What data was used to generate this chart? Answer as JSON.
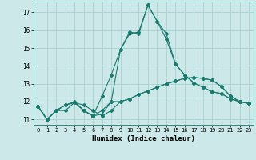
{
  "xlabel": "Humidex (Indice chaleur)",
  "bg_color": "#cce8e8",
  "line_color": "#1a7a6e",
  "grid_color": "#aacfcf",
  "xlim": [
    -0.5,
    23.5
  ],
  "ylim": [
    10.7,
    17.6
  ],
  "yticks": [
    11,
    12,
    13,
    14,
    15,
    16,
    17
  ],
  "xticks": [
    0,
    1,
    2,
    3,
    4,
    5,
    6,
    7,
    8,
    9,
    10,
    11,
    12,
    13,
    14,
    15,
    16,
    17,
    18,
    19,
    20,
    21,
    22,
    23
  ],
  "xtick_labels": [
    "0",
    "1",
    "2",
    "3",
    "4",
    "5",
    "6",
    "7",
    "8",
    "9",
    "10",
    "11",
    "12",
    "13",
    "14",
    "15",
    "16",
    "17",
    "18",
    "19",
    "20",
    "21",
    "22",
    "23"
  ],
  "series": [
    [
      11.75,
      11.0,
      11.5,
      11.5,
      11.95,
      11.8,
      11.5,
      11.2,
      11.5,
      12.0,
      12.15,
      12.4,
      12.6,
      12.8,
      13.0,
      13.15,
      13.3,
      13.35,
      13.3,
      13.2,
      12.85,
      12.3,
      12.0,
      11.9
    ],
    [
      11.75,
      11.0,
      11.5,
      11.8,
      11.95,
      11.5,
      11.2,
      12.3,
      13.5,
      14.9,
      15.8,
      15.9,
      17.4,
      16.5,
      15.5,
      14.1,
      13.5,
      13.05,
      12.8,
      12.55,
      12.45,
      12.15,
      12.0,
      11.9
    ],
    [
      11.75,
      11.0,
      11.5,
      11.8,
      11.95,
      11.5,
      11.2,
      11.5,
      12.0,
      14.9,
      15.9,
      15.8,
      17.4,
      16.5,
      15.8,
      14.1,
      13.5,
      13.05,
      12.8,
      12.55,
      12.45,
      12.15,
      12.0,
      11.9
    ],
    [
      11.75,
      11.0,
      11.5,
      11.8,
      12.0,
      11.5,
      11.2,
      11.3,
      12.0,
      12.0,
      12.15,
      12.4,
      12.6,
      12.8,
      13.0,
      13.15,
      13.3,
      13.35,
      13.3,
      13.2,
      12.85,
      12.3,
      12.0,
      11.9
    ]
  ]
}
